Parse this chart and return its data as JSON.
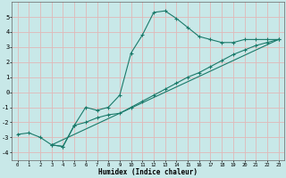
{
  "xlabel": "Humidex (Indice chaleur)",
  "ylabel": "",
  "background_color": "#c8e8e8",
  "grid_color": "#e0b8b8",
  "line_color": "#1a7a6a",
  "xlim": [
    -0.5,
    23.5
  ],
  "ylim": [
    -4.5,
    6.0
  ],
  "xticks": [
    0,
    1,
    2,
    3,
    4,
    5,
    6,
    7,
    8,
    9,
    10,
    11,
    12,
    13,
    14,
    15,
    16,
    17,
    18,
    19,
    20,
    21,
    22,
    23
  ],
  "yticks": [
    -4,
    -3,
    -2,
    -1,
    0,
    1,
    2,
    3,
    4,
    5
  ],
  "curve1_x": [
    0,
    1,
    2,
    3,
    4,
    5,
    6,
    7,
    8,
    9,
    10,
    11,
    12,
    13,
    14,
    15,
    16,
    17,
    18,
    19,
    20,
    21,
    22,
    23
  ],
  "curve1_y": [
    -2.8,
    -2.7,
    -3.0,
    -3.5,
    -3.6,
    -2.2,
    -1.0,
    -1.2,
    -1.0,
    -0.2,
    2.6,
    3.8,
    5.3,
    5.4,
    4.9,
    4.3,
    3.7,
    3.5,
    3.3,
    3.3,
    3.5,
    3.5,
    3.5,
    3.5
  ],
  "curve2_x": [
    3,
    4,
    5,
    6,
    7,
    8,
    9,
    10,
    11,
    12,
    13,
    14,
    15,
    16,
    17,
    18,
    19,
    20,
    21,
    22,
    23
  ],
  "curve2_y": [
    -3.5,
    -3.6,
    -2.2,
    -2.0,
    -1.7,
    -1.5,
    -1.4,
    -1.0,
    -0.6,
    -0.2,
    0.2,
    0.6,
    1.0,
    1.3,
    1.7,
    2.1,
    2.5,
    2.8,
    3.1,
    3.3,
    3.5
  ],
  "curve3_x": [
    3,
    23
  ],
  "curve3_y": [
    -3.5,
    3.5
  ]
}
